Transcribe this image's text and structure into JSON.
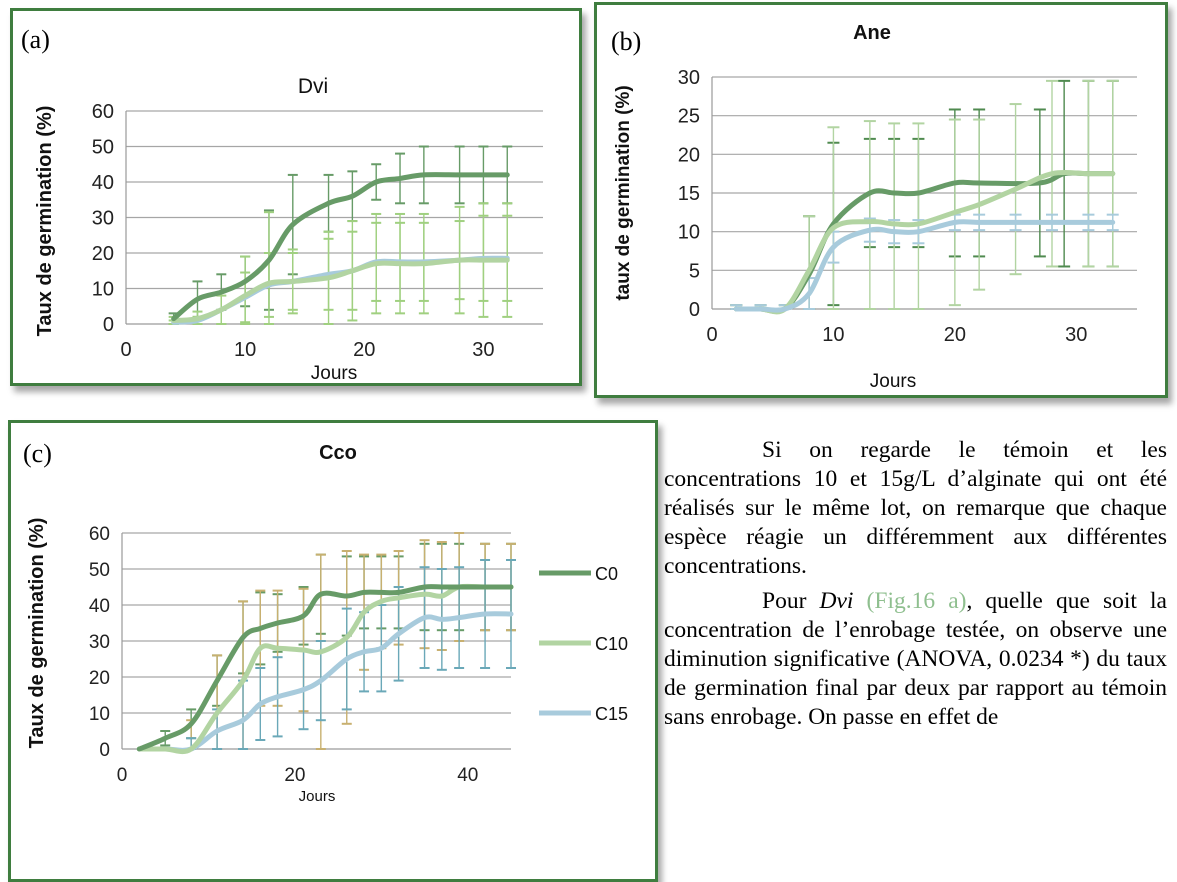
{
  "colors": {
    "c0": "#679b67",
    "c10": "#b2d4a2",
    "c15": "#a8cbdc",
    "err_a": "#a0d080",
    "border": "#3f7d3f"
  },
  "chart_data": [
    {
      "id": "a",
      "panel_label": "(a)",
      "type": "line",
      "title": "Dvi",
      "xlabel": "Jours",
      "ylabel": "Taux de germination (%)",
      "xlim": [
        0,
        35
      ],
      "ylim": [
        0,
        60
      ],
      "xticks": [
        0,
        10,
        20,
        30
      ],
      "yticks": [
        0,
        10,
        20,
        30,
        40,
        50,
        60
      ],
      "grid": true,
      "series": [
        {
          "key": "c0",
          "x": [
            4,
            6,
            8,
            10,
            12,
            14,
            17,
            19,
            21,
            23,
            25,
            28,
            30,
            32
          ],
          "y": [
            1.5,
            7,
            9,
            12,
            18,
            28,
            34,
            36,
            40,
            41,
            42,
            42,
            42,
            42
          ],
          "err": [
            1.5,
            5,
            5,
            7,
            14,
            14,
            8,
            7,
            5,
            7,
            8,
            8,
            8,
            8
          ]
        },
        {
          "key": "c10",
          "x": [
            4,
            6,
            8,
            10,
            12,
            14,
            17,
            19,
            21,
            23,
            25,
            28,
            30,
            32
          ],
          "y": [
            1,
            1.5,
            4,
            8,
            11.5,
            12,
            13,
            15,
            17,
            17,
            17,
            18,
            18,
            18
          ],
          "err": [
            1,
            2,
            5,
            11,
            20,
            9,
            13,
            14,
            14,
            14,
            14,
            15,
            16,
            16
          ]
        },
        {
          "key": "c15",
          "x": [
            4,
            6,
            8,
            10,
            12,
            14,
            17,
            19,
            21,
            23,
            25,
            28,
            30,
            32
          ],
          "y": [
            0.5,
            1,
            4,
            7.5,
            11,
            12,
            14,
            15,
            17.5,
            17.5,
            17.5,
            18,
            18.5,
            18.5
          ],
          "err": [
            0.5,
            1,
            4,
            7,
            9,
            8,
            10,
            11,
            11,
            11,
            11,
            11,
            12,
            12
          ]
        }
      ]
    },
    {
      "id": "b",
      "panel_label": "(b)",
      "type": "line",
      "title": "Ane",
      "xlabel": "Jours",
      "ylabel": "taux de germination  (%)",
      "xlim": [
        0,
        35
      ],
      "ylim": [
        0,
        30
      ],
      "xticks": [
        0,
        10,
        20,
        30
      ],
      "yticks": [
        0,
        5,
        10,
        15,
        20,
        25,
        30
      ],
      "grid": true,
      "series": [
        {
          "key": "c0",
          "x": [
            2,
            4,
            6,
            8,
            10,
            13,
            15,
            17,
            20,
            22,
            27,
            29,
            31,
            33
          ],
          "y": [
            0,
            0,
            0,
            4.5,
            11,
            15,
            15,
            15,
            16.3,
            16.3,
            16.3,
            17.5,
            17.5,
            17.5
          ],
          "err": [
            0.5,
            0.5,
            0.5,
            7.5,
            10.5,
            7,
            7,
            7,
            9.5,
            9.5,
            9.5,
            12,
            12,
            12
          ]
        },
        {
          "key": "c10",
          "x": [
            2,
            4,
            6,
            8,
            10,
            13,
            15,
            17,
            20,
            22,
            25,
            28,
            31,
            33
          ],
          "y": [
            0,
            0,
            0,
            5,
            10.5,
            11.3,
            11,
            11,
            12.5,
            13.5,
            15.5,
            17.5,
            17.5,
            17.5
          ],
          "err": [
            0.5,
            0.5,
            0.5,
            7,
            13,
            13,
            13,
            13,
            12,
            11,
            11,
            12,
            12,
            12
          ]
        },
        {
          "key": "c15",
          "x": [
            2,
            4,
            6,
            8,
            10,
            13,
            15,
            17,
            20,
            22,
            25,
            28,
            31,
            33
          ],
          "y": [
            0,
            0,
            0,
            2,
            8,
            10.2,
            10,
            10,
            11.2,
            11.2,
            11.2,
            11.2,
            11.2,
            11.2
          ],
          "err": [
            0.5,
            0.5,
            0.5,
            2,
            2,
            1.5,
            1.5,
            1.5,
            1,
            1,
            1,
            1,
            1,
            1
          ]
        }
      ]
    },
    {
      "id": "c",
      "panel_label": "(c)",
      "type": "line",
      "title": "Cco",
      "xlabel": "Jours",
      "ylabel": "Taux de germination (%)",
      "xlim": [
        0,
        45
      ],
      "ylim": [
        0,
        60
      ],
      "xticks": [
        0,
        20,
        40
      ],
      "yticks": [
        0,
        10,
        20,
        30,
        40,
        50,
        60
      ],
      "grid": true,
      "legend_position": "right",
      "series": [
        {
          "key": "c0",
          "name": "C0",
          "x": [
            2,
            5,
            8,
            11,
            14,
            16,
            18,
            21,
            23,
            26,
            28,
            30,
            32,
            35,
            37,
            39,
            42,
            45
          ],
          "y": [
            0,
            3,
            7,
            19,
            31,
            33.5,
            35,
            37,
            43,
            42.5,
            43.5,
            43.5,
            43.5,
            45,
            45,
            45,
            45,
            45
          ],
          "err": [
            0,
            2,
            4,
            7,
            10,
            10,
            8,
            8,
            11,
            11,
            10,
            10,
            10,
            12,
            12,
            12,
            12,
            12
          ]
        },
        {
          "key": "c10",
          "name": "C10",
          "x": [
            2,
            5,
            8,
            11,
            14,
            16,
            18,
            21,
            23,
            26,
            28,
            30,
            32,
            35,
            37,
            39,
            42,
            45
          ],
          "y": [
            0,
            0,
            0,
            10,
            19,
            28,
            28,
            27.5,
            27,
            31,
            38,
            41,
            42,
            43,
            42.5,
            45,
            45,
            45
          ],
          "err": [
            0,
            0,
            8,
            16,
            22,
            16,
            16,
            17,
            27,
            24,
            16,
            13,
            13,
            15,
            15,
            15,
            12,
            12
          ]
        },
        {
          "key": "c15",
          "name": "C15",
          "x": [
            2,
            5,
            8,
            11,
            14,
            16,
            18,
            21,
            23,
            26,
            28,
            30,
            32,
            35,
            37,
            39,
            42,
            45
          ],
          "y": [
            0,
            0,
            0,
            5,
            8,
            12.5,
            14.5,
            16.5,
            19,
            25,
            27,
            28,
            32,
            36.5,
            36,
            36.5,
            37.5,
            37.5
          ],
          "err": [
            0,
            0,
            3,
            6,
            11,
            10,
            11,
            11,
            11,
            14,
            11,
            12,
            13,
            14,
            14,
            14,
            15,
            15
          ]
        }
      ]
    }
  ],
  "text": {
    "para1": "Si on regarde le témoin et les concentrations 10 et 15g/L d’alginate qui ont été réalisés sur le même lot, on remarque que chaque espèce réagie un différemment aux différentes concentrations.",
    "para2_pre": "Pour ",
    "para2_species": "Dvi",
    "para2_ref": "(Fig.16 a)",
    "para2_post": ", quelle que soit la concentration de l’enrobage testée, on observe une diminution significative (ANOVA, 0.0234 *) du taux de germination final par deux par rapport au témoin sans enrobage. On passe en effet de"
  }
}
